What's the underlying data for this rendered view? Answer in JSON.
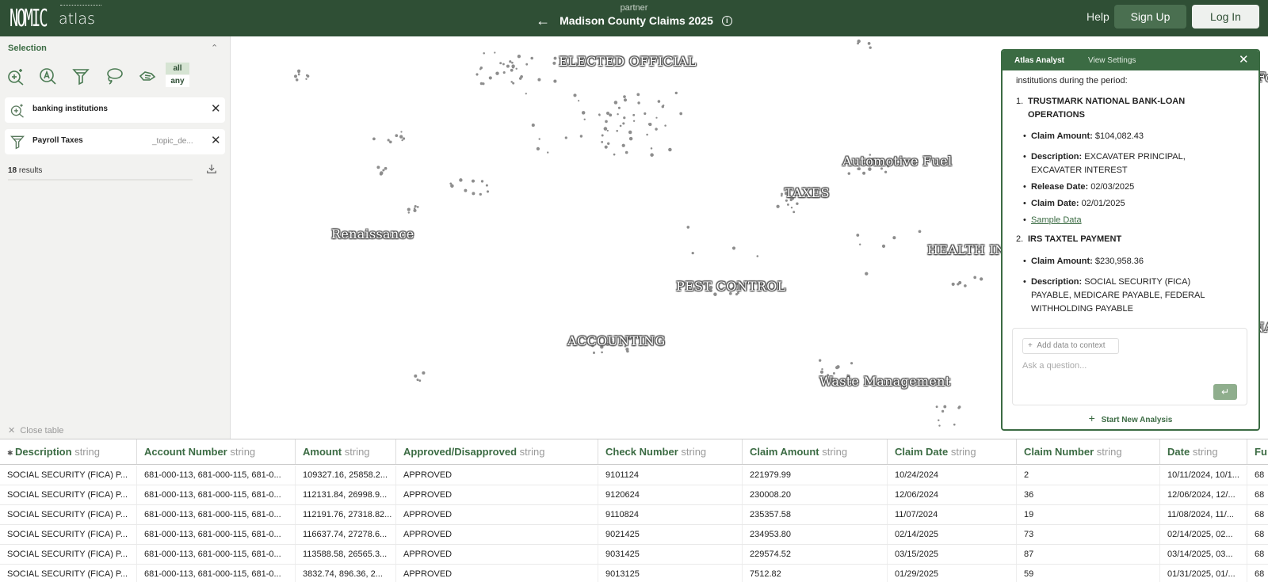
{
  "header": {
    "logo_wordmark": "NOMIC",
    "logo_sub": "atlas",
    "partner": "partner",
    "title": "Madison County Claims 2025",
    "help": "Help",
    "signup": "Sign Up",
    "login": "Log In"
  },
  "sidebar": {
    "selection_title": "Selection",
    "mode_all": "all",
    "mode_any": "any",
    "filters": [
      {
        "label": "banking institutions",
        "meta": "",
        "icon": "search-zoom-icon"
      },
      {
        "label": "Payroll Taxes",
        "meta": "_topic_de...",
        "icon": "filter-icon"
      }
    ],
    "results_count": "18",
    "results_text": " results",
    "progress": 0.0,
    "close_table": "Close table"
  },
  "map": {
    "labels": [
      {
        "text": "ELECTED OFFICIAL"
      },
      {
        "text": "Automotive Fuel"
      },
      {
        "text": "TAXES"
      },
      {
        "text": "Renaissance"
      },
      {
        "text": "HEALTH IN"
      },
      {
        "text": "PEST CONTROL"
      },
      {
        "text": "ACCOUNTING"
      },
      {
        "text": "Waste Management"
      },
      {
        "text": "Fo"
      },
      {
        "text": "NA"
      }
    ]
  },
  "analyst": {
    "tab_active": "Atlas Analyst",
    "tab_settings": "View Settings",
    "intro": "institutions during the period:",
    "items": [
      {
        "num": "1.",
        "title_line1": "TRUSTMARK NATIONAL BANK-LOAN",
        "title_line2": "OPERATIONS",
        "claim_amount_label": "Claim Amount:",
        "claim_amount": "$104,082.43",
        "description_label": "Description:",
        "description": "EXCAVATER PRINCIPAL, EXCAVATER INTEREST",
        "release_label": "Release Date:",
        "release": "02/03/2025",
        "claim_date_label": "Claim Date:",
        "claim_date": "02/01/2025",
        "sample": "Sample Data"
      },
      {
        "num": "2.",
        "title_line1": "IRS TAXTEL PAYMENT",
        "claim_amount_label": "Claim Amount:",
        "claim_amount": "$230,958.36",
        "description_label": "Description:",
        "description": "SOCIAL SECURITY (FICA) PAYABLE, MEDICARE PAYABLE, FEDERAL WITHHOLDING PAYABLE"
      }
    ],
    "add_context": "Add data to context",
    "ask_placeholder": "Ask a question...",
    "new_analysis": "Start New Analysis"
  },
  "table": {
    "columns": [
      {
        "name": "Description",
        "type": "string"
      },
      {
        "name": "Account Number",
        "type": "string"
      },
      {
        "name": "Amount",
        "type": "string"
      },
      {
        "name": "Approved/Disapproved",
        "type": "string"
      },
      {
        "name": "Check Number",
        "type": "string"
      },
      {
        "name": "Claim Amount",
        "type": "string"
      },
      {
        "name": "Claim Date",
        "type": "string"
      },
      {
        "name": "Claim Number",
        "type": "string"
      },
      {
        "name": "Date",
        "type": "string"
      },
      {
        "name": "Fu",
        "type": ""
      }
    ],
    "rows": [
      [
        "SOCIAL SECURITY (FICA) P...",
        "681-000-113, 681-000-115, 681-0...",
        "109327.16, 25858.2...",
        "APPROVED",
        "9101124",
        "221979.99",
        "10/24/2024",
        "2",
        "10/11/2024, 10/1...",
        "68"
      ],
      [
        "SOCIAL SECURITY (FICA) P...",
        "681-000-113, 681-000-115, 681-0...",
        "112131.84, 26998.9...",
        "APPROVED",
        "9120624",
        "230008.20",
        "12/06/2024",
        "36",
        "12/06/2024, 12/...",
        "68"
      ],
      [
        "SOCIAL SECURITY (FICA) P...",
        "681-000-113, 681-000-115, 681-0...",
        "112191.76, 27318.82...",
        "APPROVED",
        "9110824",
        "235357.58",
        "11/07/2024",
        "19",
        "11/08/2024, 11/...",
        "68"
      ],
      [
        "SOCIAL SECURITY (FICA) P...",
        "681-000-113, 681-000-115, 681-0...",
        "116637.74, 27278.6...",
        "APPROVED",
        "9021425",
        "234953.80",
        "02/14/2025",
        "73",
        "02/14/2025, 02...",
        "68"
      ],
      [
        "SOCIAL SECURITY (FICA) P...",
        "681-000-113, 681-000-115, 681-0...",
        "113588.58, 26565.3...",
        "APPROVED",
        "9031425",
        "229574.52",
        "03/15/2025",
        "87",
        "03/14/2025, 03...",
        "68"
      ],
      [
        "SOCIAL SECURITY (FICA) P...",
        "681-000-113, 681-000-115, 681-0...",
        "3832.74, 896.36, 2...",
        "APPROVED",
        "9013125",
        "7512.82",
        "01/29/2025",
        "59",
        "01/31/2025, 01/...",
        "68"
      ]
    ]
  }
}
